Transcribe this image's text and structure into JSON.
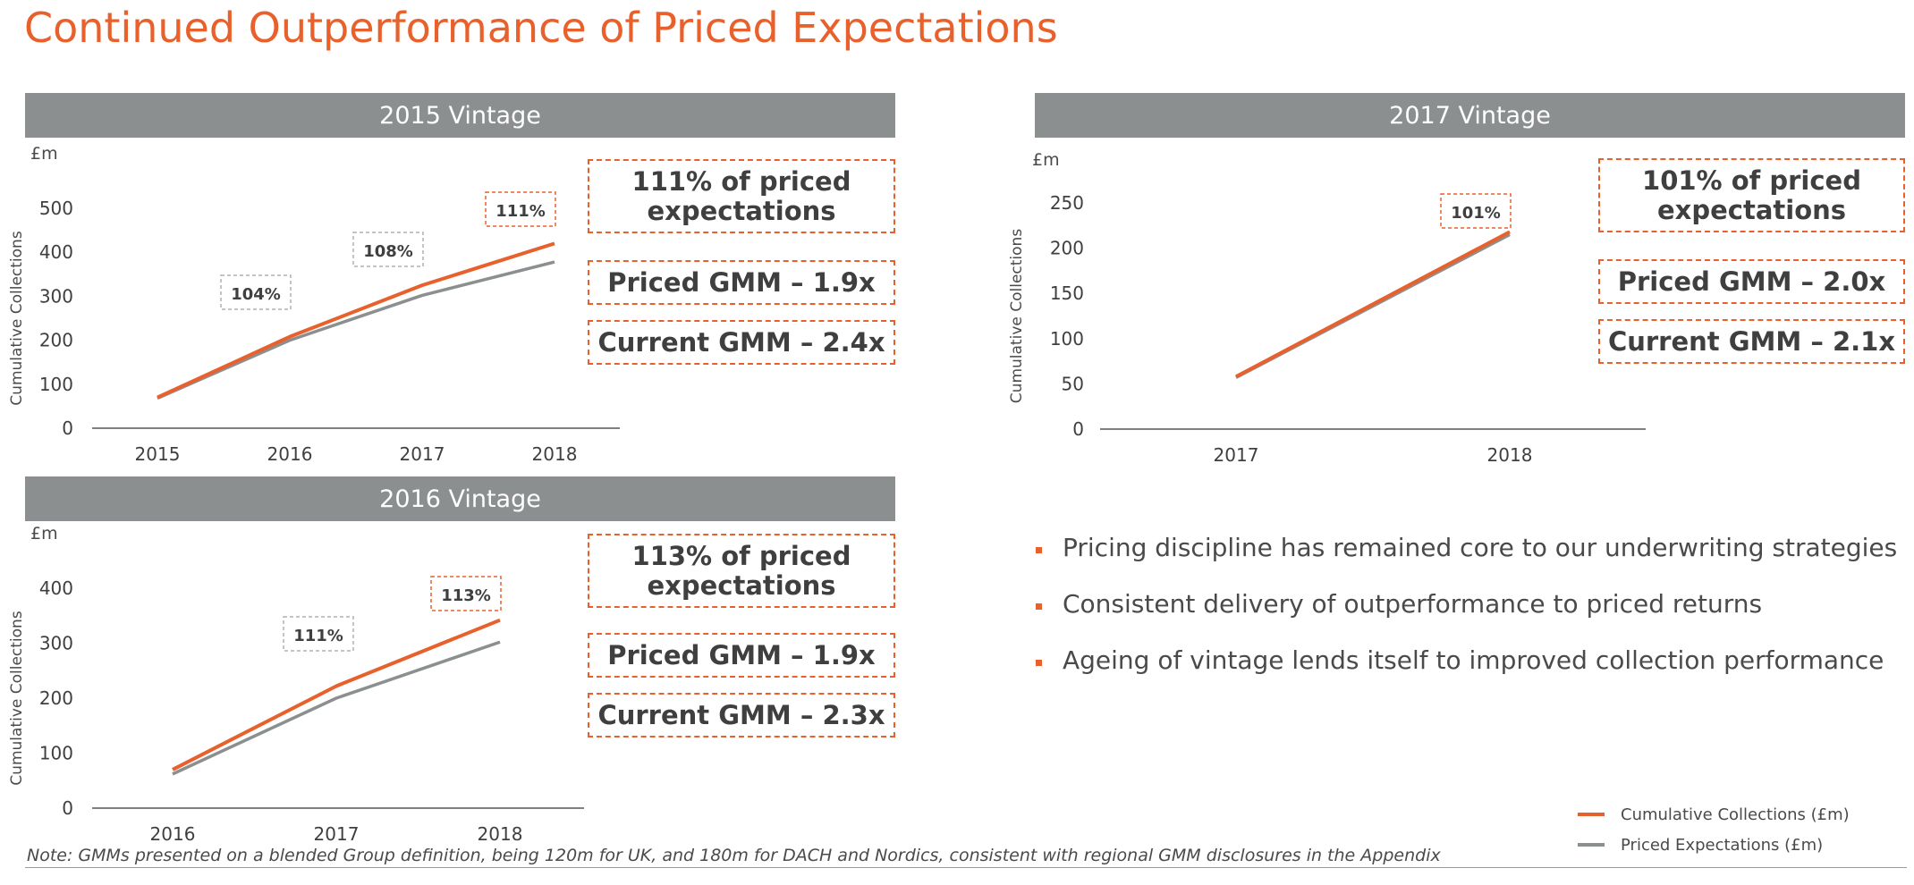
{
  "title": "Continued Outperformance of Priced Expectations",
  "colors": {
    "accent": "#e8612c",
    "expected": "#8c8f90",
    "header": "#8c8f90"
  },
  "panels": [
    {
      "header": "2015 Vintage",
      "box1": "111% of priced expectations",
      "box2": "Priced GMM – 1.9x",
      "box3": "Current GMM – 2.4x"
    },
    {
      "header": "2016 Vintage",
      "box1": "113% of priced expectations",
      "box2": "Priced GMM – 1.9x",
      "box3": "Current GMM – 2.3x"
    },
    {
      "header": "2017 Vintage",
      "box1": "101% of priced expectations",
      "box2": "Priced GMM – 2.0x",
      "box3": "Current GMM – 2.1x"
    }
  ],
  "chart_data": [
    {
      "type": "line",
      "unit": "£m",
      "ylabel": "Cumulative Collections",
      "x": [
        "2015",
        "2016",
        "2017",
        "2018"
      ],
      "ylim": [
        0,
        500
      ],
      "yticks": [
        0,
        100,
        200,
        300,
        400,
        500
      ],
      "series": [
        {
          "name": "Cumulative Collections (£m)",
          "values": [
            70,
            208,
            325,
            420
          ]
        },
        {
          "name": "Priced Expectations (£m)",
          "values": [
            68,
            200,
            302,
            378
          ]
        }
      ],
      "annotations": [
        {
          "x": "2016",
          "text": "104%"
        },
        {
          "x": "2017",
          "text": "108%"
        },
        {
          "x": "2018",
          "text": "111%"
        }
      ]
    },
    {
      "type": "line",
      "unit": "£m",
      "ylabel": "Cumulative Collections",
      "x": [
        "2016",
        "2017",
        "2018"
      ],
      "ylim": [
        0,
        400
      ],
      "yticks": [
        0,
        100,
        200,
        300,
        400
      ],
      "series": [
        {
          "name": "Cumulative Collections (£m)",
          "values": [
            70,
            222,
            342
          ]
        },
        {
          "name": "Priced Expectations (£m)",
          "values": [
            62,
            200,
            302
          ]
        }
      ],
      "annotations": [
        {
          "x": "2017",
          "text": "111%"
        },
        {
          "x": "2018",
          "text": "113%"
        }
      ]
    },
    {
      "type": "line",
      "unit": "£m",
      "ylabel": "Cumulative Collections",
      "x": [
        "2017",
        "2018"
      ],
      "ylim": [
        0,
        250
      ],
      "yticks": [
        0,
        50,
        100,
        150,
        200,
        250
      ],
      "series": [
        {
          "name": "Cumulative Collections (£m)",
          "values": [
            58,
            218
          ]
        },
        {
          "name": "Priced Expectations (£m)",
          "values": [
            57,
            215
          ]
        }
      ],
      "annotations": [
        {
          "x": "2018",
          "text": "101%"
        }
      ]
    }
  ],
  "bullets": [
    "Pricing discipline has remained core to our underwriting strategies",
    "Consistent delivery of outperformance to priced returns",
    "Ageing of vintage lends itself to improved collection performance"
  ],
  "legend": [
    {
      "label": "Cumulative Collections (£m)",
      "color": "#e8612c"
    },
    {
      "label": "Priced Expectations (£m)",
      "color": "#8c8f90"
    }
  ],
  "note": "Note: GMMs presented on a blended Group definition, being 120m for UK, and 180m for DACH and Nordics, consistent with regional GMM disclosures in the Appendix"
}
